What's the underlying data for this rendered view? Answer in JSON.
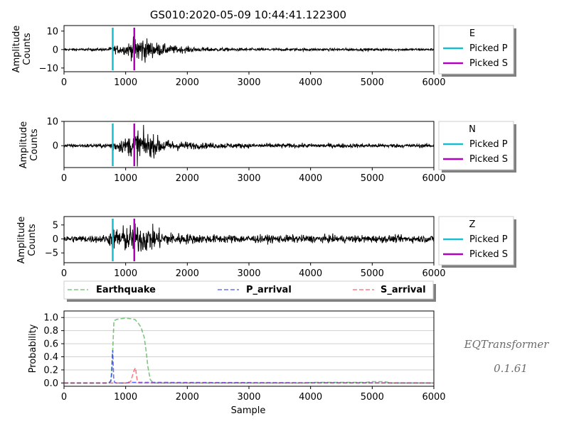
{
  "chart_data": [
    {
      "type": "line",
      "panel": "E",
      "title": "GS010:2020-05-09 10:44:41.122300",
      "ylabel": "Amplitude\nCounts",
      "xlim": [
        0,
        6000
      ],
      "ylim": [
        -12,
        13
      ],
      "xticks": [
        0,
        1000,
        2000,
        3000,
        4000,
        5000,
        6000
      ],
      "yticks": [
        -10,
        0,
        10
      ],
      "picked_p": 790,
      "picked_s": 1140,
      "legend": {
        "title": "E",
        "entries": [
          "Picked P",
          "Picked S"
        ]
      },
      "waveform_envelope": [
        {
          "x": 0,
          "amp": 0.8
        },
        {
          "x": 700,
          "amp": 0.9
        },
        {
          "x": 790,
          "amp": 2.5
        },
        {
          "x": 1000,
          "amp": 3.5
        },
        {
          "x": 1140,
          "amp": 8.0
        },
        {
          "x": 1200,
          "amp": 11.0
        },
        {
          "x": 1400,
          "amp": 6.0
        },
        {
          "x": 1700,
          "amp": 3.0
        },
        {
          "x": 2200,
          "amp": 1.5
        },
        {
          "x": 3000,
          "amp": 1.0
        },
        {
          "x": 6000,
          "amp": 0.8
        }
      ]
    },
    {
      "type": "line",
      "panel": "N",
      "ylabel": "Amplitude\nCounts",
      "xlim": [
        0,
        6000
      ],
      "ylim": [
        -9,
        10
      ],
      "xticks": [
        0,
        1000,
        2000,
        3000,
        4000,
        5000,
        6000
      ],
      "yticks": [
        0,
        10
      ],
      "picked_p": 790,
      "picked_s": 1140,
      "legend": {
        "title": "N",
        "entries": [
          "Picked P",
          "Picked S"
        ]
      },
      "waveform_envelope": [
        {
          "x": 0,
          "amp": 0.9
        },
        {
          "x": 700,
          "amp": 1.0
        },
        {
          "x": 790,
          "amp": 3.0
        },
        {
          "x": 1000,
          "amp": 4.0
        },
        {
          "x": 1140,
          "amp": 7.0
        },
        {
          "x": 1200,
          "amp": 9.0
        },
        {
          "x": 1400,
          "amp": 6.0
        },
        {
          "x": 1700,
          "amp": 3.0
        },
        {
          "x": 2200,
          "amp": 1.6
        },
        {
          "x": 3000,
          "amp": 1.2
        },
        {
          "x": 6000,
          "amp": 1.0
        }
      ]
    },
    {
      "type": "line",
      "panel": "Z",
      "ylabel": "Amplitude\nCounts",
      "xlim": [
        0,
        6000
      ],
      "ylim": [
        -8.5,
        8
      ],
      "xticks": [
        0,
        1000,
        2000,
        3000,
        4000,
        5000,
        6000
      ],
      "yticks": [
        -5,
        0,
        5
      ],
      "picked_p": 790,
      "picked_s": 1140,
      "legend": {
        "title": "Z",
        "entries": [
          "Picked P",
          "Picked S"
        ]
      },
      "waveform_envelope": [
        {
          "x": 0,
          "amp": 1.5
        },
        {
          "x": 700,
          "amp": 1.8
        },
        {
          "x": 790,
          "amp": 5.0
        },
        {
          "x": 1000,
          "amp": 6.0
        },
        {
          "x": 1140,
          "amp": 6.5
        },
        {
          "x": 1200,
          "amp": 7.0
        },
        {
          "x": 1500,
          "amp": 5.0
        },
        {
          "x": 1700,
          "amp": 3.0
        },
        {
          "x": 2200,
          "amp": 2.0
        },
        {
          "x": 3000,
          "amp": 1.8
        },
        {
          "x": 6000,
          "amp": 1.6
        }
      ]
    },
    {
      "type": "line",
      "panel": "Probability",
      "xlabel": "Sample",
      "ylabel": "Probability",
      "xlim": [
        0,
        6000
      ],
      "ylim": [
        -0.05,
        1.1
      ],
      "xticks": [
        0,
        1000,
        2000,
        3000,
        4000,
        5000,
        6000
      ],
      "yticks": [
        0.0,
        0.2,
        0.4,
        0.6,
        0.8,
        1.0
      ],
      "grid": "y",
      "legend": {
        "placement": "top",
        "entries": [
          "Earthquake",
          "P_arrival",
          "S_arrival"
        ]
      },
      "series": [
        {
          "name": "Earthquake",
          "color": "#2ca02c",
          "x": [
            0,
            700,
            760,
            790,
            810,
            850,
            900,
            1000,
            1100,
            1150,
            1200,
            1250,
            1300,
            1330,
            1360,
            1400,
            1450,
            3900,
            4100,
            4900,
            5000,
            5200,
            5300,
            6000
          ],
          "y": [
            0.0,
            0.0,
            0.02,
            0.5,
            0.95,
            0.97,
            0.98,
            0.99,
            0.98,
            0.97,
            0.92,
            0.85,
            0.7,
            0.5,
            0.25,
            0.05,
            0.0,
            0.0,
            0.01,
            0.01,
            0.02,
            0.02,
            0.0,
            0.0
          ]
        },
        {
          "name": "P_arrival",
          "color": "#0015ff",
          "x": [
            0,
            700,
            740,
            760,
            775,
            785,
            790,
            795,
            805,
            820,
            850,
            1000,
            1100,
            6000
          ],
          "y": [
            0.0,
            0.0,
            0.01,
            0.04,
            0.15,
            0.42,
            0.5,
            0.35,
            0.08,
            0.01,
            0.0,
            0.0,
            0.01,
            0.0
          ]
        },
        {
          "name": "S_arrival",
          "color": "#ff2435",
          "x": [
            0,
            1000,
            1080,
            1100,
            1120,
            1140,
            1160,
            1175,
            1190,
            1220,
            6000
          ],
          "y": [
            0.0,
            0.0,
            0.02,
            0.08,
            0.14,
            0.2,
            0.23,
            0.12,
            0.03,
            0.0,
            0.0
          ]
        }
      ]
    }
  ],
  "watermark": {
    "name": "EQTransformer",
    "version": "0.1.61"
  },
  "colors": {
    "picked_p": "#17becf",
    "picked_s": "#b000c0",
    "waveform": "#000000"
  }
}
